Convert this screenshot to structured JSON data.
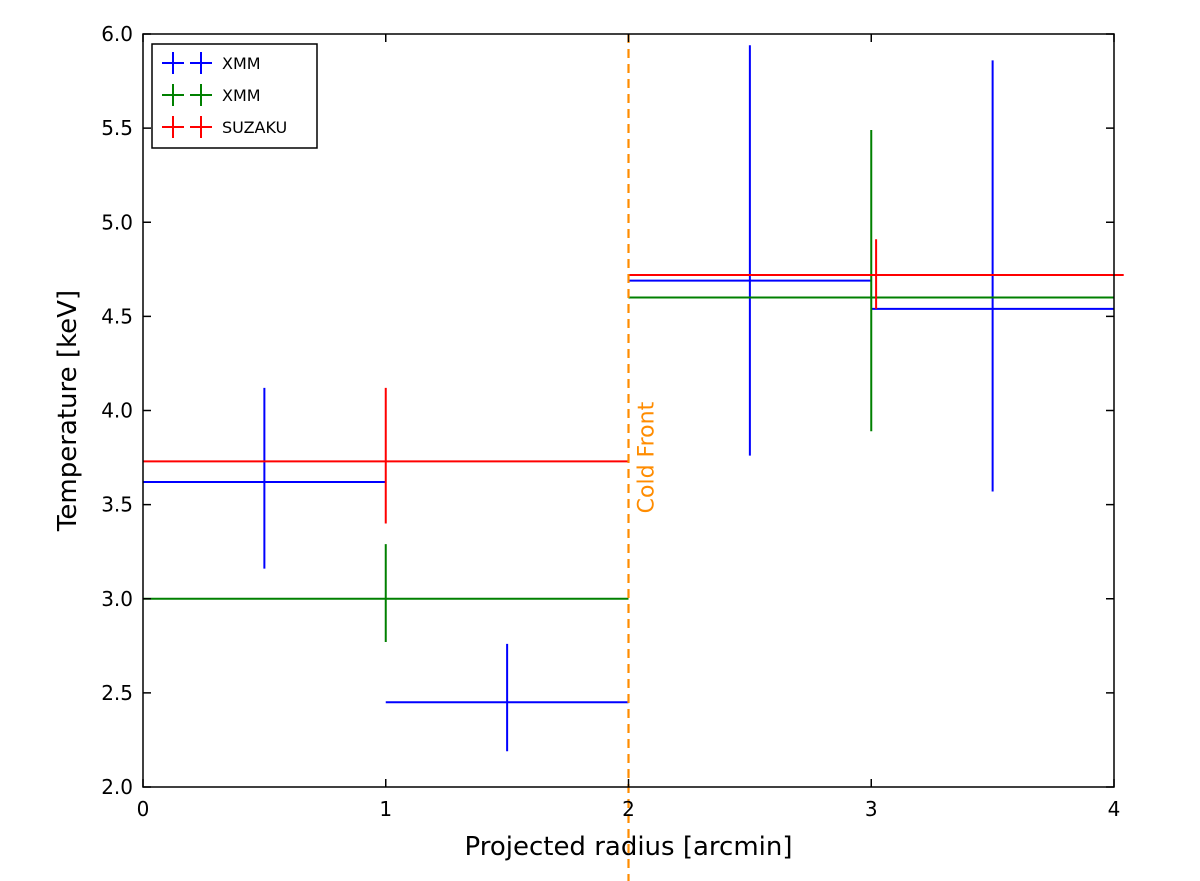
{
  "chart_data": {
    "type": "scatter",
    "title": "",
    "xlabel": "Projected radius [arcmin]",
    "ylabel": "Temperature [keV]",
    "xlim": [
      0,
      4
    ],
    "ylim": [
      2.0,
      6.0
    ],
    "xticks": [
      0,
      1,
      2,
      3,
      4
    ],
    "yticks": [
      2.0,
      2.5,
      3.0,
      3.5,
      4.0,
      4.5,
      5.0,
      5.5,
      6.0
    ],
    "xtick_labels": [
      "0",
      "1",
      "2",
      "3",
      "4"
    ],
    "ytick_labels": [
      "2.0",
      "2.5",
      "3.0",
      "3.5",
      "4.0",
      "4.5",
      "5.0",
      "5.5",
      "6.0"
    ],
    "grid": false,
    "legend_position": "top-left",
    "series": [
      {
        "name": "XMM",
        "color": "#0000ff",
        "points": [
          {
            "x": 0.5,
            "xerr": 0.5,
            "y": 3.62,
            "ylo": 3.16,
            "yhi": 4.12
          },
          {
            "x": 1.5,
            "xerr": 0.5,
            "y": 2.45,
            "ylo": 2.19,
            "yhi": 2.76
          },
          {
            "x": 2.5,
            "xerr": 0.5,
            "y": 4.69,
            "ylo": 3.76,
            "yhi": 5.94
          },
          {
            "x": 3.5,
            "xerr": 0.5,
            "y": 4.54,
            "ylo": 3.57,
            "yhi": 5.86
          }
        ]
      },
      {
        "name": "XMM",
        "color": "#008000",
        "points": [
          {
            "x": 1.0,
            "xerr": 1.0,
            "y": 3.0,
            "ylo": 2.77,
            "yhi": 3.29
          },
          {
            "x": 3.0,
            "xerr": 1.0,
            "y": 4.6,
            "ylo": 3.89,
            "yhi": 5.49
          }
        ]
      },
      {
        "name": "SUZAKU",
        "color": "#ff0000",
        "points": [
          {
            "x": 1.0,
            "xerr": 1.0,
            "y": 3.73,
            "ylo": 3.4,
            "yhi": 4.12
          },
          {
            "x": 3.02,
            "xerr": 1.02,
            "y": 4.72,
            "ylo": 4.54,
            "yhi": 4.91
          }
        ]
      }
    ],
    "vline": {
      "x": 2.0,
      "label": "Cold Front",
      "color": "#ff8c00",
      "style": "dashed"
    }
  }
}
